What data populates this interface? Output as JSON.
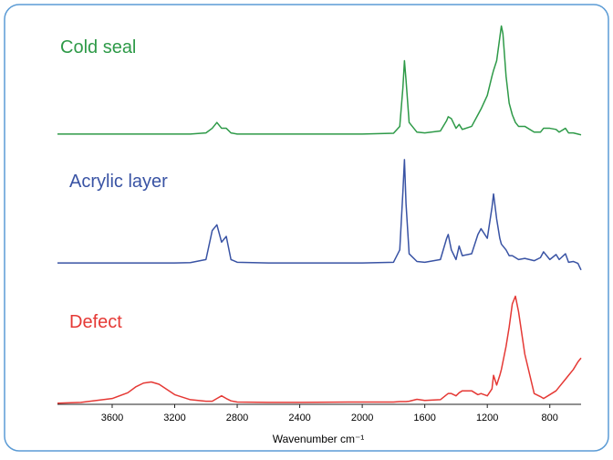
{
  "chart_data": {
    "type": "line",
    "x_label": "Wavenumber cm⁻¹",
    "x": [
      3950,
      3800,
      3600,
      3500,
      3450,
      3400,
      3350,
      3300,
      3200,
      3100,
      3000,
      2960,
      2930,
      2900,
      2870,
      2840,
      2800,
      2600,
      2400,
      2000,
      1800,
      1760,
      1740,
      1730,
      1720,
      1700,
      1650,
      1600,
      1500,
      1460,
      1450,
      1430,
      1400,
      1380,
      1360,
      1300,
      1260,
      1240,
      1200,
      1170,
      1160,
      1140,
      1120,
      1110,
      1100,
      1080,
      1060,
      1040,
      1020,
      1000,
      960,
      900,
      860,
      840,
      800,
      760,
      740,
      700,
      680,
      650,
      620,
      600
    ],
    "xlim": [
      3950,
      600
    ],
    "xticks": [
      3600,
      3200,
      2800,
      2400,
      2000,
      1600,
      1200,
      800,
      400
    ],
    "ylim": [
      0,
      100
    ],
    "series": [
      {
        "name": "Cold seal",
        "color": "#2e9a48",
        "values": [
          70,
          70,
          70,
          70,
          70,
          70,
          70,
          70,
          70,
          70,
          70.3,
          71.5,
          73,
          71.5,
          71.5,
          70.3,
          70,
          70,
          70,
          70,
          70.2,
          72,
          82,
          89,
          84,
          73,
          70.5,
          70.3,
          70.8,
          73.5,
          74.5,
          74,
          71.5,
          72.5,
          71.2,
          72,
          75,
          76.5,
          80,
          85,
          86.5,
          89,
          95,
          98,
          96,
          85,
          78,
          75,
          73,
          72,
          72,
          70.5,
          70.5,
          71.5,
          71.5,
          71.2,
          70.5,
          71.5,
          70.3,
          70.3,
          70,
          69.8
        ]
      },
      {
        "name": "Acrylic layer",
        "color": "#3953a4",
        "values": [
          36.6,
          36.6,
          36.6,
          36.6,
          36.6,
          36.6,
          36.6,
          36.6,
          36.6,
          36.7,
          37.5,
          45,
          46.5,
          42,
          43.5,
          37.5,
          36.8,
          36.6,
          36.6,
          36.6,
          36.8,
          40,
          55,
          63.4,
          52,
          39,
          37,
          36.8,
          37.5,
          43,
          44,
          40,
          37.5,
          41,
          38.5,
          39,
          44,
          45.5,
          43,
          51,
          54.5,
          48,
          43,
          41.5,
          41,
          40,
          38.5,
          38.5,
          38,
          37.5,
          37.8,
          37.2,
          38,
          39.5,
          37.5,
          38.8,
          37.5,
          39,
          36.8,
          37,
          36.5,
          34.8
        ]
      },
      {
        "name": "Defect",
        "color": "#e53935",
        "values": [
          0.3,
          0.5,
          1.5,
          3,
          4.5,
          5.5,
          5.8,
          5.2,
          2.5,
          1.2,
          0.8,
          0.8,
          1.5,
          2.2,
          1.5,
          0.9,
          0.6,
          0.5,
          0.5,
          0.6,
          0.6,
          0.7,
          0.7,
          0.7,
          0.7,
          0.8,
          1.3,
          1,
          1.2,
          2.5,
          2.8,
          2.8,
          2.2,
          3,
          3.5,
          3.5,
          2.5,
          2.8,
          2.2,
          4,
          7.5,
          5,
          7.5,
          9,
          11,
          15,
          20,
          26,
          28,
          24,
          13,
          2.8,
          2,
          1.5,
          2.5,
          3.5,
          4.5,
          6.5,
          7.5,
          9,
          11,
          12
        ]
      }
    ]
  }
}
